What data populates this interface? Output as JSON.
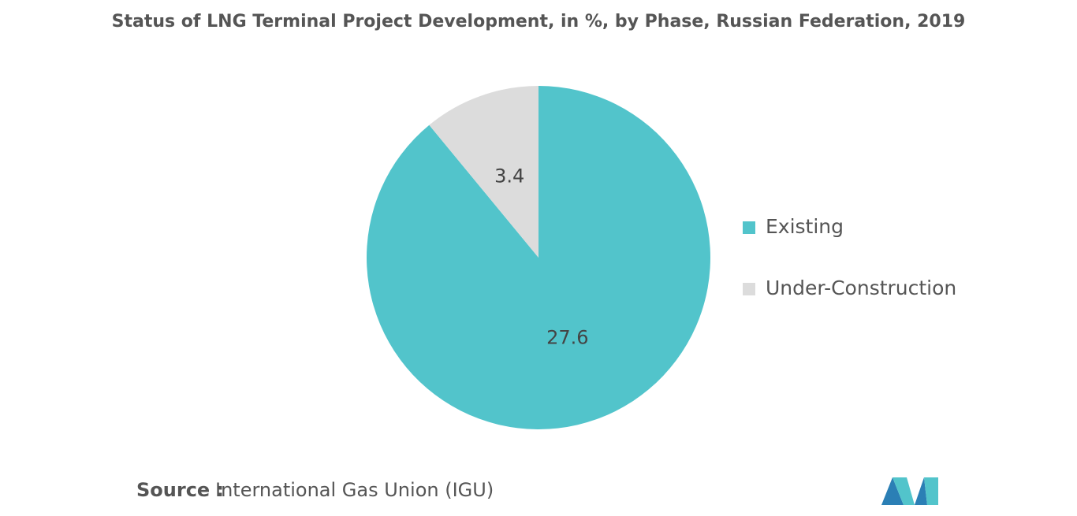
{
  "chart_data": {
    "type": "pie",
    "title": "Status of LNG Terminal Project Development, in %, by Phase, Russian Federation, 2019",
    "categories": [
      "Existing",
      "Under-Construction"
    ],
    "values": [
      27.6,
      3.4
    ],
    "colors": [
      "#52c4cb",
      "#dcdcdc"
    ],
    "legend": "right"
  },
  "source": {
    "label": "Source :",
    "text": "International Gas Union (IGU)"
  }
}
